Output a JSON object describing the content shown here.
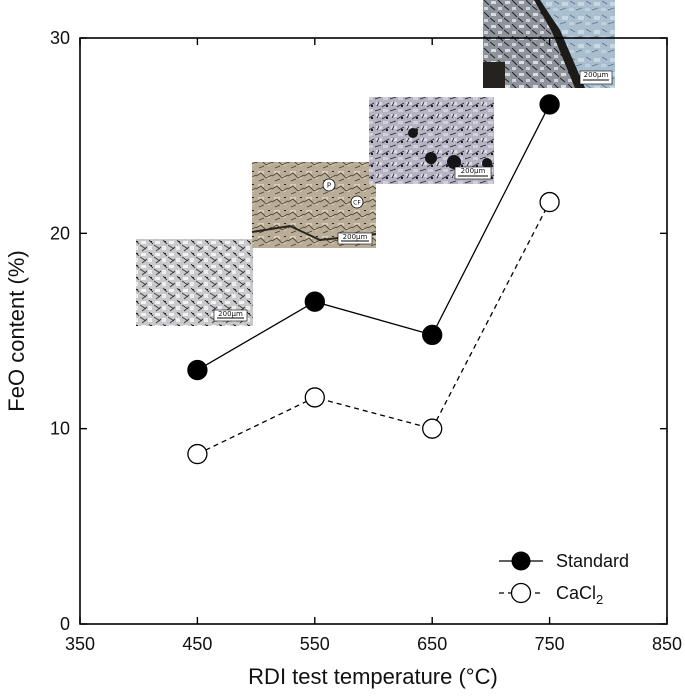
{
  "chart_data": {
    "type": "line",
    "xlabel": "RDI test temperature (°C)",
    "ylabel": "FeO content (%)",
    "xlim": [
      350,
      850
    ],
    "ylim": [
      0,
      30
    ],
    "xticks": [
      "350",
      "450",
      "550",
      "650",
      "750",
      "850"
    ],
    "yticks": [
      "0",
      "10",
      "20",
      "30"
    ],
    "series": [
      {
        "name": "Standard",
        "x": [
          450,
          550,
          650,
          750
        ],
        "values": [
          13.0,
          16.5,
          14.8,
          26.6
        ],
        "marker": "filled-circle",
        "line": "solid",
        "color": "#000000"
      },
      {
        "name": "CaCl",
        "name_subscript": "2",
        "x": [
          450,
          550,
          650,
          750
        ],
        "values": [
          8.7,
          11.6,
          10.0,
          21.6
        ],
        "marker": "open-circle",
        "line": "dashed",
        "color": "#000000"
      }
    ],
    "legend_position": "bottom-right",
    "grid": false,
    "insets": [
      {
        "kind": "micrograph",
        "at_x": 450,
        "scale_label": "200μm",
        "tone": "light-gray"
      },
      {
        "kind": "micrograph",
        "at_x": 550,
        "scale_label": "200μm",
        "tone": "beige",
        "markers": [
          "P",
          "CF"
        ]
      },
      {
        "kind": "micrograph",
        "at_x": 650,
        "scale_label": "200μm",
        "tone": "lavender-gray"
      },
      {
        "kind": "micrograph",
        "at_x": 750,
        "scale_label": "200μm",
        "tone": "dark-blue-gray"
      }
    ]
  }
}
